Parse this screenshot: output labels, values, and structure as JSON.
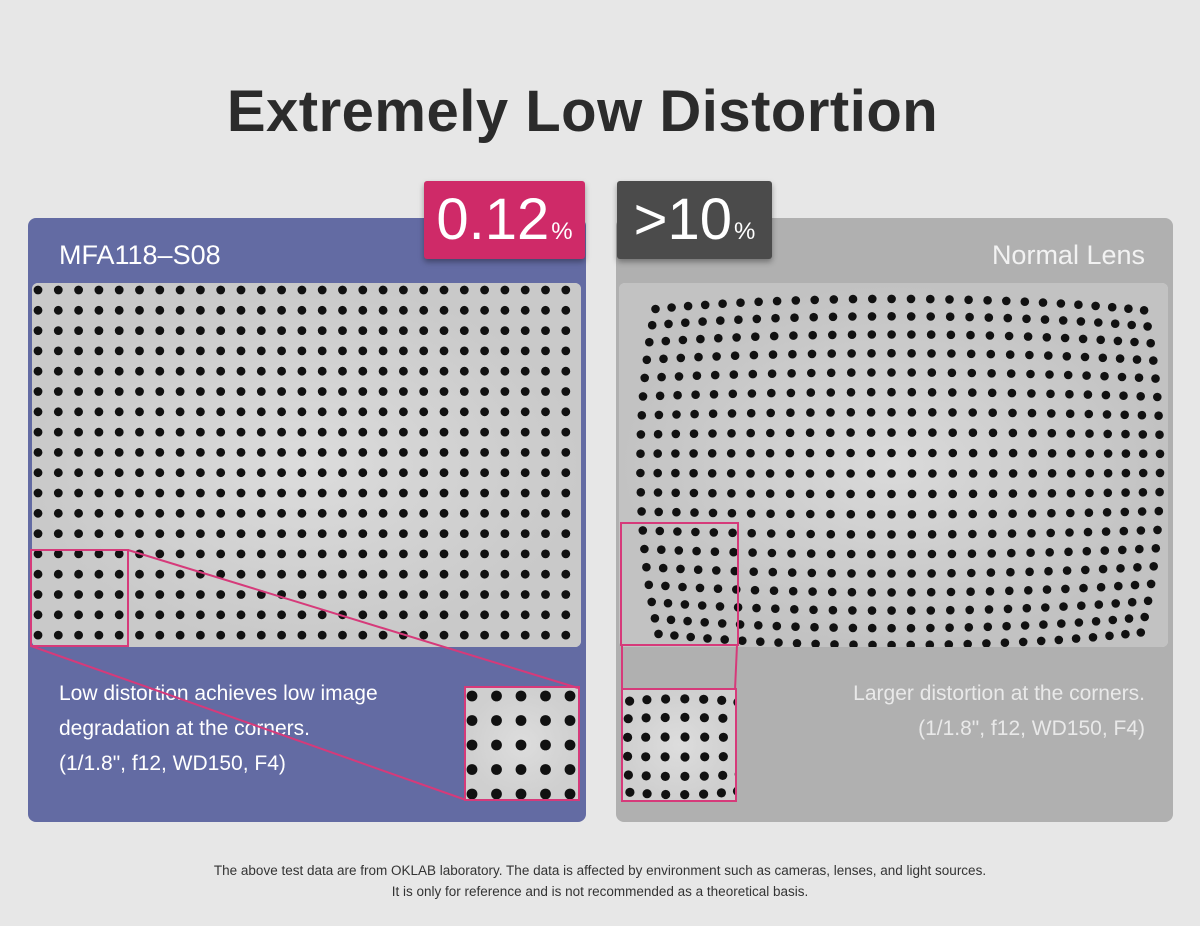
{
  "title": "Extremely Low Distortion",
  "left_panel": {
    "label": "MFA118–S08",
    "badge_value": "0.12",
    "badge_unit": "%",
    "description": [
      "Low distortion achieves low image",
      "degradation at the corners.",
      "(1/1.8\", f12, WD150, F4)"
    ]
  },
  "right_panel": {
    "label": "Normal Lens",
    "badge_value": ">10",
    "badge_unit": "%",
    "description": [
      "Larger distortion at the corners.",
      "(1/1.8\", f12, WD150, F4)"
    ]
  },
  "footer": [
    "The above test data are from OKLAB laboratory. The data is affected by environment such as cameras, lenses, and light sources.",
    "It is only for reference and is not recommended as a theoretical basis."
  ],
  "colors": {
    "accent_pink": "#cf2a68",
    "highlight_border": "#d63a7a",
    "left_panel_bg": "#636ba3",
    "right_panel_bg": "#b0b0b0",
    "dark_badge": "#4b4b4b"
  }
}
